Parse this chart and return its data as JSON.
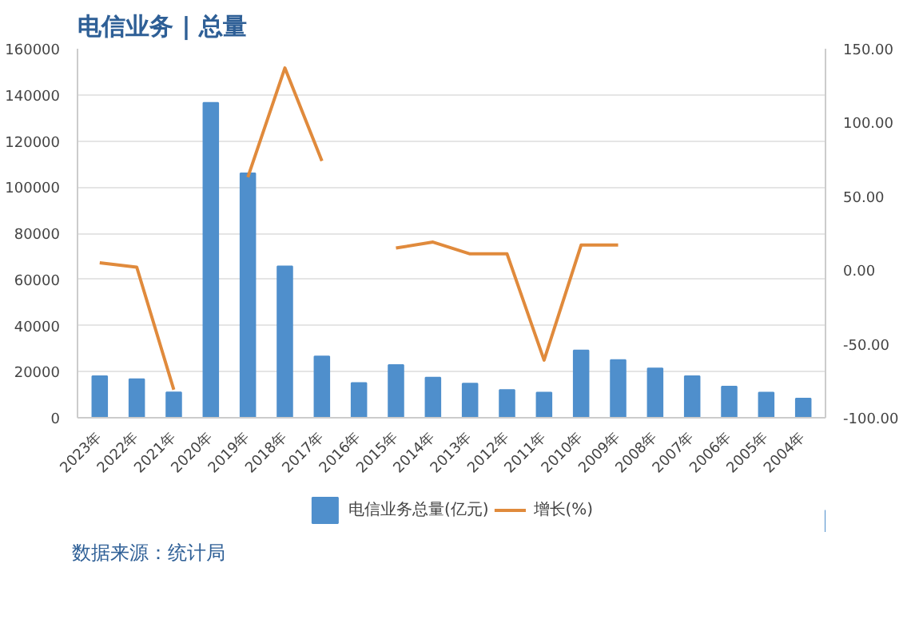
{
  "chart_data": {
    "type": "bar",
    "title": "电信业务 | 总量",
    "categories": [
      "2023年",
      "2022年",
      "2021年",
      "2020年",
      "2019年",
      "2018年",
      "2017年",
      "2016年",
      "2015年",
      "2014年",
      "2013年",
      "2012年",
      "2011年",
      "2010年",
      "2009年",
      "2008年",
      "2007年",
      "2006年",
      "2005年",
      "2004年"
    ],
    "series": [
      {
        "name": "电信业务总量(亿元)",
        "color": "#4f8fcc",
        "values": [
          18000,
          16700,
          11000,
          136500,
          106000,
          65600,
          26600,
          15100,
          22900,
          17400,
          14800,
          12000,
          10900,
          29200,
          25000,
          21400,
          18000,
          13500,
          10900,
          8300
        ]
      },
      {
        "name": "增长(%)",
        "type": "line",
        "axis": "y2",
        "color": "#e08a3c",
        "values": [
          5,
          2,
          -81,
          null,
          63,
          137,
          74,
          null,
          15,
          19,
          11,
          11,
          -61,
          17,
          17,
          null,
          null,
          null,
          null,
          null
        ]
      }
    ],
    "ylim": [
      0,
      160000
    ],
    "yticks": [
      0,
      20000,
      40000,
      60000,
      80000,
      100000,
      120000,
      140000,
      160000
    ],
    "y2lim": [
      -100,
      150
    ],
    "y2ticks": [
      {
        "value": 150,
        "label": "150.00"
      },
      {
        "value": 100,
        "label": "100.00"
      },
      {
        "value": 50,
        "label": "50.00"
      },
      {
        "value": 0,
        "label": "0.00"
      },
      {
        "value": -50,
        "label": "-50.00"
      },
      {
        "value": -100,
        "label": "-100.00"
      }
    ],
    "grid": "y",
    "legend": "bottom",
    "annotations": [
      "数据来源：统计局"
    ]
  }
}
